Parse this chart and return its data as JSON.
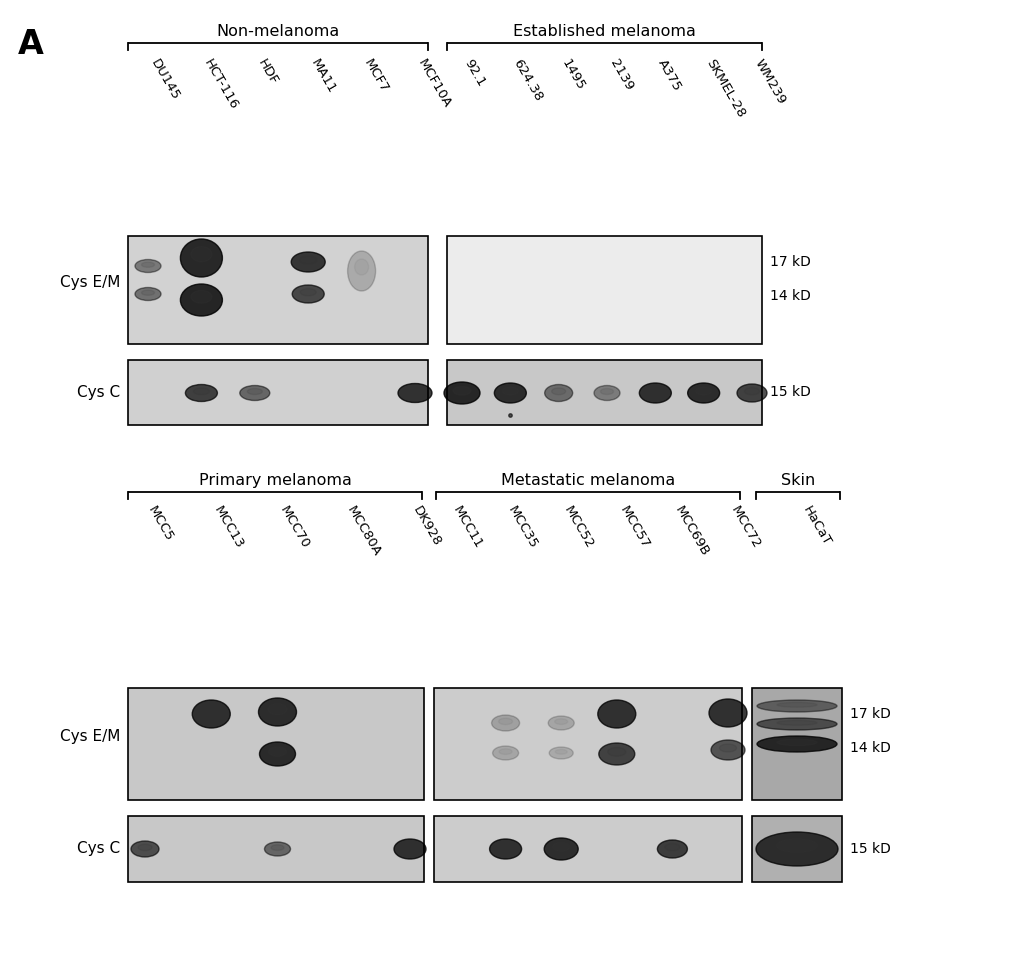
{
  "title_letter": "A",
  "top_group1_label": "Non-melanoma",
  "top_group2_label": "Established melanoma",
  "top_group1_samples": [
    "DU145",
    "HCT-116",
    "HDF",
    "MA11",
    "MCF7",
    "MCF10A"
  ],
  "top_group2_samples": [
    "92.1",
    "624.38",
    "1495",
    "2139",
    "A375",
    "SKMEL-28",
    "WM239"
  ],
  "bot_group1_label": "Primary melanoma",
  "bot_group2_label": "Metastatic melanoma",
  "bot_group3_label": "Skin",
  "bot_group1_samples": [
    "MCC5",
    "MCC13",
    "MCC70",
    "MCC80A",
    "DK928"
  ],
  "bot_group2_samples": [
    "MCC11",
    "MCC35",
    "MCC52",
    "MCC57",
    "MCC69B",
    "MCC72"
  ],
  "bot_group3_samples": [
    "HaCaT"
  ],
  "bg_color": "#ffffff"
}
